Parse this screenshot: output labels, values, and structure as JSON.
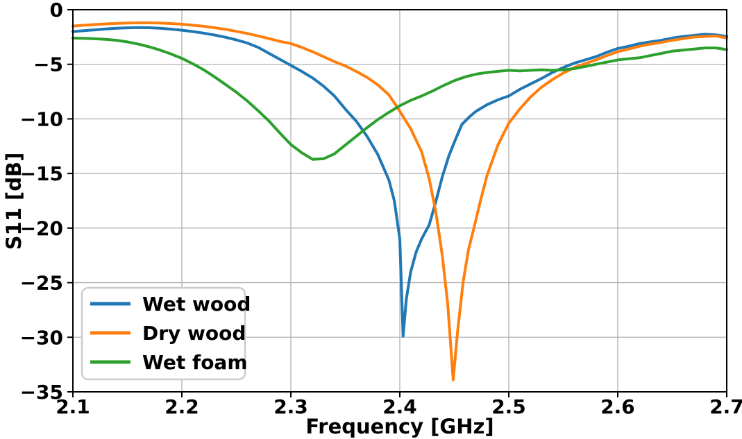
{
  "chart_data": {
    "type": "line",
    "title": "",
    "xlabel": "Frequency [GHz]",
    "ylabel": "S11 [dB]",
    "xlim": [
      2.1,
      2.7
    ],
    "ylim": [
      -35,
      0
    ],
    "x_ticks": [
      2.1,
      2.2,
      2.3,
      2.4,
      2.5,
      2.6,
      2.7
    ],
    "y_ticks": [
      0,
      -5,
      -10,
      -15,
      -20,
      -25,
      -30,
      -35
    ],
    "grid": true,
    "grid_color": "#b0b0b0",
    "legend_position": "lower left",
    "series": [
      {
        "name": "Wet wood",
        "color": "#1f77b4",
        "resonance_ghz": 2.403,
        "min_db": -29.9,
        "points": [
          [
            2.1,
            -2.0
          ],
          [
            2.11,
            -1.92
          ],
          [
            2.12,
            -1.85
          ],
          [
            2.13,
            -1.76
          ],
          [
            2.14,
            -1.7
          ],
          [
            2.15,
            -1.66
          ],
          [
            2.16,
            -1.63
          ],
          [
            2.17,
            -1.65
          ],
          [
            2.18,
            -1.7
          ],
          [
            2.19,
            -1.78
          ],
          [
            2.2,
            -1.88
          ],
          [
            2.21,
            -2.0
          ],
          [
            2.22,
            -2.15
          ],
          [
            2.23,
            -2.32
          ],
          [
            2.24,
            -2.52
          ],
          [
            2.25,
            -2.76
          ],
          [
            2.26,
            -3.05
          ],
          [
            2.27,
            -3.45
          ],
          [
            2.28,
            -4.0
          ],
          [
            2.29,
            -4.55
          ],
          [
            2.3,
            -5.1
          ],
          [
            2.31,
            -5.65
          ],
          [
            2.32,
            -6.25
          ],
          [
            2.33,
            -7.0
          ],
          [
            2.34,
            -7.9
          ],
          [
            2.35,
            -9.1
          ],
          [
            2.36,
            -10.2
          ],
          [
            2.37,
            -11.6
          ],
          [
            2.38,
            -13.3
          ],
          [
            2.39,
            -15.6
          ],
          [
            2.395,
            -17.5
          ],
          [
            2.4,
            -21.0
          ],
          [
            2.403,
            -29.9
          ],
          [
            2.406,
            -26.5
          ],
          [
            2.41,
            -24.0
          ],
          [
            2.415,
            -22.2
          ],
          [
            2.42,
            -21.0
          ],
          [
            2.427,
            -19.7
          ],
          [
            2.433,
            -17.6
          ],
          [
            2.439,
            -15.3
          ],
          [
            2.445,
            -13.4
          ],
          [
            2.451,
            -11.9
          ],
          [
            2.457,
            -10.5
          ],
          [
            2.464,
            -9.8
          ],
          [
            2.47,
            -9.3
          ],
          [
            2.48,
            -8.7
          ],
          [
            2.49,
            -8.25
          ],
          [
            2.5,
            -7.9
          ],
          [
            2.51,
            -7.3
          ],
          [
            2.52,
            -6.8
          ],
          [
            2.53,
            -6.3
          ],
          [
            2.54,
            -5.75
          ],
          [
            2.55,
            -5.3
          ],
          [
            2.56,
            -4.9
          ],
          [
            2.57,
            -4.6
          ],
          [
            2.58,
            -4.3
          ],
          [
            2.59,
            -3.9
          ],
          [
            2.6,
            -3.55
          ],
          [
            2.61,
            -3.35
          ],
          [
            2.62,
            -3.1
          ],
          [
            2.63,
            -2.95
          ],
          [
            2.64,
            -2.8
          ],
          [
            2.65,
            -2.6
          ],
          [
            2.66,
            -2.45
          ],
          [
            2.67,
            -2.35
          ],
          [
            2.68,
            -2.25
          ],
          [
            2.69,
            -2.3
          ],
          [
            2.7,
            -2.45
          ]
        ]
      },
      {
        "name": "Dry wood",
        "color": "#ff7f0e",
        "resonance_ghz": 2.449,
        "min_db": -33.9,
        "points": [
          [
            2.1,
            -1.5
          ],
          [
            2.11,
            -1.42
          ],
          [
            2.12,
            -1.36
          ],
          [
            2.13,
            -1.3
          ],
          [
            2.14,
            -1.26
          ],
          [
            2.15,
            -1.22
          ],
          [
            2.16,
            -1.2
          ],
          [
            2.17,
            -1.2
          ],
          [
            2.18,
            -1.22
          ],
          [
            2.19,
            -1.27
          ],
          [
            2.2,
            -1.33
          ],
          [
            2.21,
            -1.42
          ],
          [
            2.22,
            -1.52
          ],
          [
            2.23,
            -1.65
          ],
          [
            2.24,
            -1.8
          ],
          [
            2.25,
            -1.98
          ],
          [
            2.26,
            -2.18
          ],
          [
            2.27,
            -2.4
          ],
          [
            2.28,
            -2.65
          ],
          [
            2.29,
            -2.9
          ],
          [
            2.3,
            -3.1
          ],
          [
            2.31,
            -3.45
          ],
          [
            2.32,
            -3.85
          ],
          [
            2.33,
            -4.3
          ],
          [
            2.34,
            -4.75
          ],
          [
            2.35,
            -5.15
          ],
          [
            2.36,
            -5.65
          ],
          [
            2.37,
            -6.2
          ],
          [
            2.38,
            -6.9
          ],
          [
            2.39,
            -7.8
          ],
          [
            2.4,
            -9.3
          ],
          [
            2.41,
            -10.9
          ],
          [
            2.42,
            -13.0
          ],
          [
            2.427,
            -15.5
          ],
          [
            2.433,
            -18.5
          ],
          [
            2.439,
            -22.5
          ],
          [
            2.444,
            -27.0
          ],
          [
            2.449,
            -33.9
          ],
          [
            2.453,
            -29.5
          ],
          [
            2.458,
            -25.0
          ],
          [
            2.463,
            -22.0
          ],
          [
            2.468,
            -20.0
          ],
          [
            2.474,
            -17.5
          ],
          [
            2.48,
            -15.2
          ],
          [
            2.49,
            -12.4
          ],
          [
            2.5,
            -10.4
          ],
          [
            2.51,
            -9.1
          ],
          [
            2.52,
            -8.0
          ],
          [
            2.53,
            -7.1
          ],
          [
            2.54,
            -6.4
          ],
          [
            2.55,
            -5.8
          ],
          [
            2.56,
            -5.3
          ],
          [
            2.57,
            -4.95
          ],
          [
            2.58,
            -4.6
          ],
          [
            2.59,
            -4.2
          ],
          [
            2.6,
            -3.85
          ],
          [
            2.61,
            -3.6
          ],
          [
            2.62,
            -3.35
          ],
          [
            2.63,
            -3.15
          ],
          [
            2.64,
            -3.0
          ],
          [
            2.65,
            -2.8
          ],
          [
            2.66,
            -2.65
          ],
          [
            2.67,
            -2.5
          ],
          [
            2.68,
            -2.45
          ],
          [
            2.69,
            -2.4
          ],
          [
            2.7,
            -2.6
          ]
        ]
      },
      {
        "name": "Wet foam",
        "color": "#2ca02c",
        "resonance_ghz": 2.32,
        "min_db": -13.7,
        "points": [
          [
            2.1,
            -2.6
          ],
          [
            2.11,
            -2.62
          ],
          [
            2.12,
            -2.66
          ],
          [
            2.13,
            -2.72
          ],
          [
            2.14,
            -2.8
          ],
          [
            2.15,
            -2.95
          ],
          [
            2.16,
            -3.15
          ],
          [
            2.17,
            -3.4
          ],
          [
            2.18,
            -3.7
          ],
          [
            2.19,
            -4.05
          ],
          [
            2.2,
            -4.45
          ],
          [
            2.21,
            -4.95
          ],
          [
            2.22,
            -5.5
          ],
          [
            2.23,
            -6.15
          ],
          [
            2.24,
            -6.85
          ],
          [
            2.25,
            -7.55
          ],
          [
            2.26,
            -8.35
          ],
          [
            2.27,
            -9.25
          ],
          [
            2.28,
            -10.2
          ],
          [
            2.29,
            -11.3
          ],
          [
            2.3,
            -12.35
          ],
          [
            2.31,
            -13.1
          ],
          [
            2.32,
            -13.7
          ],
          [
            2.33,
            -13.65
          ],
          [
            2.34,
            -13.2
          ],
          [
            2.35,
            -12.4
          ],
          [
            2.36,
            -11.6
          ],
          [
            2.37,
            -10.8
          ],
          [
            2.38,
            -10.05
          ],
          [
            2.39,
            -9.4
          ],
          [
            2.4,
            -8.8
          ],
          [
            2.41,
            -8.3
          ],
          [
            2.42,
            -7.9
          ],
          [
            2.43,
            -7.45
          ],
          [
            2.44,
            -6.95
          ],
          [
            2.45,
            -6.5
          ],
          [
            2.46,
            -6.15
          ],
          [
            2.47,
            -5.9
          ],
          [
            2.48,
            -5.75
          ],
          [
            2.49,
            -5.65
          ],
          [
            2.5,
            -5.55
          ],
          [
            2.51,
            -5.6
          ],
          [
            2.52,
            -5.55
          ],
          [
            2.53,
            -5.5
          ],
          [
            2.54,
            -5.55
          ],
          [
            2.55,
            -5.5
          ],
          [
            2.56,
            -5.4
          ],
          [
            2.57,
            -5.2
          ],
          [
            2.58,
            -5.0
          ],
          [
            2.59,
            -4.8
          ],
          [
            2.6,
            -4.6
          ],
          [
            2.61,
            -4.5
          ],
          [
            2.62,
            -4.4
          ],
          [
            2.63,
            -4.2
          ],
          [
            2.64,
            -4.0
          ],
          [
            2.65,
            -3.8
          ],
          [
            2.66,
            -3.7
          ],
          [
            2.67,
            -3.6
          ],
          [
            2.68,
            -3.5
          ],
          [
            2.69,
            -3.5
          ],
          [
            2.7,
            -3.65
          ]
        ]
      }
    ]
  }
}
